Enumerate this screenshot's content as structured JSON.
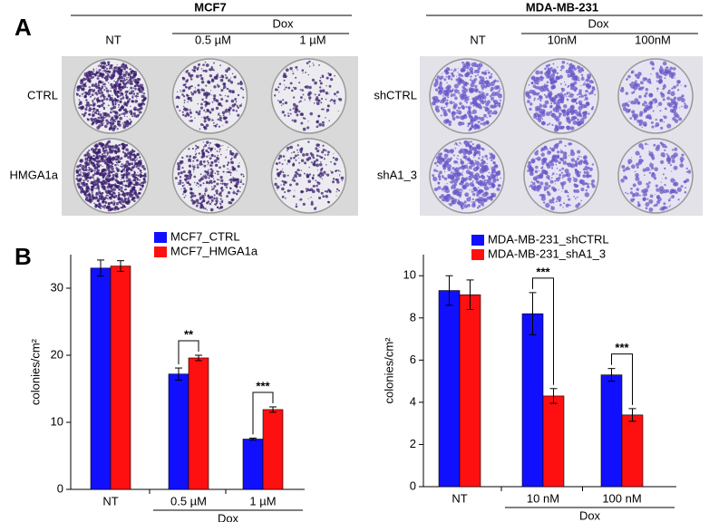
{
  "panel_a": {
    "letter": "A",
    "left": {
      "title": "MCF7",
      "group": "Dox",
      "columns": [
        "NT",
        "0.5 µM",
        "1 µM"
      ],
      "rows": [
        "CTRL",
        "HMGA1a"
      ]
    },
    "right": {
      "title": "MDA-MB-231",
      "group": "Dox",
      "columns": [
        "NT",
        "10nM",
        "100nM"
      ],
      "rows": [
        "shCTRL",
        "shA1_3"
      ]
    }
  },
  "panel_b": {
    "letter": "B"
  },
  "chart_data": [
    {
      "type": "bar",
      "y_label": "colonies/cm²",
      "categories": [
        "NT",
        "0.5 µM",
        "1 µM"
      ],
      "group_label": "Dox",
      "ylim": [
        0,
        35
      ],
      "yticks": [
        0,
        10,
        20,
        30
      ],
      "series": [
        {
          "name": "MCF7_CTRL",
          "color": "#1010ff",
          "values": [
            33,
            17.2,
            7.5
          ],
          "errors": [
            1.2,
            0.9,
            0.15
          ]
        },
        {
          "name": "MCF7_HMGA1a",
          "color": "#ff1010",
          "values": [
            33.3,
            19.6,
            11.9
          ],
          "errors": [
            0.8,
            0.4,
            0.4
          ]
        }
      ],
      "significance": [
        null,
        "**",
        "***"
      ]
    },
    {
      "type": "bar",
      "y_label": "colonies/cm²",
      "categories": [
        "NT",
        "10 nM",
        "100 nM"
      ],
      "group_label": "Dox",
      "ylim": [
        0,
        11
      ],
      "yticks": [
        0,
        2,
        4,
        6,
        8,
        10
      ],
      "series": [
        {
          "name": "MDA-MB-231_shCTRL",
          "color": "#1010ff",
          "values": [
            9.3,
            8.2,
            5.3
          ],
          "errors": [
            0.7,
            1.0,
            0.3
          ]
        },
        {
          "name": "MDA-MB-231_shA1_3",
          "color": "#ff1010",
          "values": [
            9.1,
            4.3,
            3.4
          ],
          "errors": [
            0.7,
            0.35,
            0.3
          ]
        }
      ],
      "significance": [
        null,
        "***",
        "***"
      ]
    }
  ]
}
